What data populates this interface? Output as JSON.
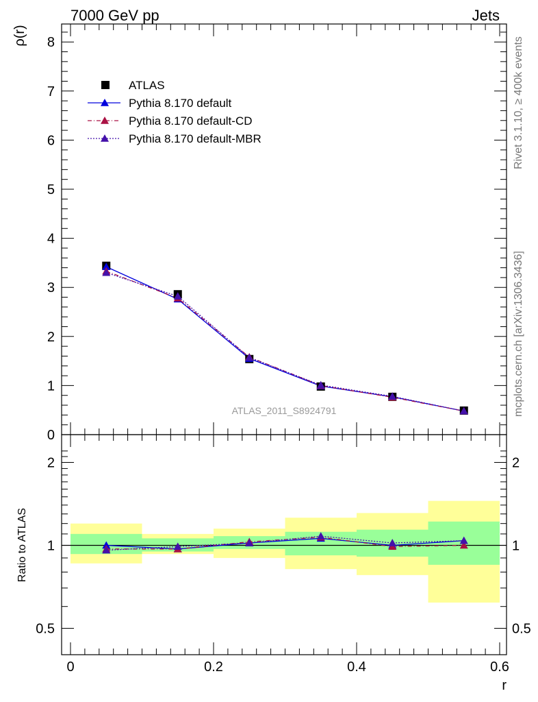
{
  "header": {
    "left": "7000 GeV pp",
    "right": "Jets"
  },
  "side_text": {
    "top": "Rivet 3.1.10, ≥ 400k events",
    "bottom": "mcplots.cern.ch [arXiv:1306.3436]"
  },
  "watermark": "ATLAS_2011_S8924791",
  "chart_data": [
    {
      "type": "scatter",
      "panel": "main",
      "ylabel": "ρ(r)",
      "xlabel": "",
      "xlim": [
        0,
        0.6
      ],
      "ylim": [
        0,
        8.4
      ],
      "yticks": [
        0,
        1,
        2,
        3,
        4,
        5,
        6,
        7,
        8
      ],
      "tick_labels": [
        "0",
        "1",
        "2",
        "3",
        "4",
        "5",
        "6",
        "7",
        "8"
      ],
      "legend_position": "top-left",
      "series": [
        {
          "name": "ATLAS",
          "marker": "square",
          "color": "#000000",
          "x": [
            0.05,
            0.15,
            0.25,
            0.35,
            0.45,
            0.55
          ],
          "y": [
            3.44,
            2.86,
            1.54,
            0.98,
            0.77,
            0.49
          ]
        },
        {
          "name": "Pythia 8.170 default",
          "marker": "triangle",
          "line": "solid",
          "color": "#0000dd",
          "x": [
            0.05,
            0.15,
            0.25,
            0.35,
            0.45,
            0.55
          ],
          "y": [
            3.42,
            2.76,
            1.55,
            0.99,
            0.77,
            0.48
          ]
        },
        {
          "name": "Pythia 8.170 default-CD",
          "marker": "triangle",
          "line": "dashdot",
          "color": "#aa1144",
          "x": [
            0.05,
            0.15,
            0.25,
            0.35,
            0.45,
            0.55
          ],
          "y": [
            3.33,
            2.78,
            1.58,
            1.0,
            0.76,
            0.48
          ]
        },
        {
          "name": "Pythia 8.170 default-MBR",
          "marker": "triangle",
          "line": "dotted",
          "color": "#4411aa",
          "x": [
            0.05,
            0.15,
            0.25,
            0.35,
            0.45,
            0.55
          ],
          "y": [
            3.3,
            2.82,
            1.57,
            1.01,
            0.78,
            0.48
          ]
        }
      ]
    },
    {
      "type": "scatter",
      "panel": "ratio",
      "ylabel": "Ratio to ATLAS",
      "xlabel": "r",
      "xlim": [
        0,
        0.6
      ],
      "ylim": [
        0.4,
        2.3
      ],
      "y_scale": "log",
      "yticks": [
        0.5,
        1,
        2
      ],
      "tick_labels": [
        "0.5",
        "1",
        "2"
      ],
      "xticks": [
        0,
        0.2,
        0.4,
        0.6
      ],
      "xtick_labels": [
        "0",
        "0.2",
        "0.4",
        "0.6"
      ],
      "bands": {
        "x_edges": [
          0,
          0.1,
          0.2,
          0.3,
          0.4,
          0.5,
          0.6
        ],
        "inner_low": [
          0.93,
          0.95,
          0.97,
          0.92,
          0.91,
          0.85
        ],
        "inner_high": [
          1.1,
          1.06,
          1.08,
          1.12,
          1.14,
          1.22
        ],
        "outer_low": [
          0.86,
          0.93,
          0.9,
          0.82,
          0.78,
          0.62
        ],
        "outer_high": [
          1.2,
          1.1,
          1.15,
          1.26,
          1.31,
          1.45
        ],
        "inner_color": "#99ff99",
        "outer_color": "#ffff99"
      },
      "series": [
        {
          "name": "Pythia 8.170 default",
          "color": "#0000dd",
          "line": "solid",
          "x": [
            0.05,
            0.15,
            0.25,
            0.35,
            0.45,
            0.55
          ],
          "y": [
            1.0,
            0.97,
            1.02,
            1.06,
            1.0,
            1.04
          ]
        },
        {
          "name": "Pythia 8.170 default-CD",
          "color": "#aa1144",
          "line": "dashdot",
          "x": [
            0.05,
            0.15,
            0.25,
            0.35,
            0.45,
            0.55
          ],
          "y": [
            0.97,
            0.97,
            1.03,
            1.07,
            0.99,
            1.0
          ]
        },
        {
          "name": "Pythia 8.170 default-MBR",
          "color": "#4411aa",
          "line": "dotted",
          "x": [
            0.05,
            0.15,
            0.25,
            0.35,
            0.45,
            0.55
          ],
          "y": [
            0.96,
            0.99,
            1.02,
            1.08,
            1.02,
            1.04
          ]
        }
      ]
    }
  ]
}
